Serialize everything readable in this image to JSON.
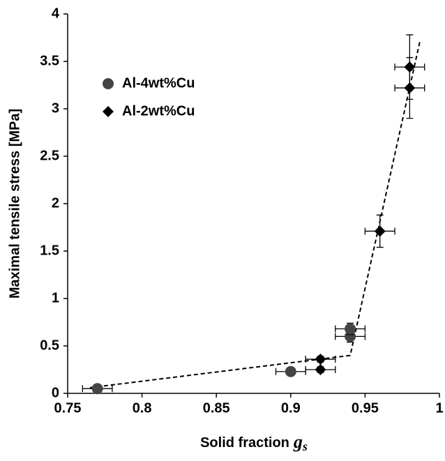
{
  "chart_data": {
    "type": "scatter",
    "x_label": "Solid fraction",
    "x_label_symbol": "g",
    "x_label_subscript": "s",
    "y_label": "Maximal tensile stress [MPa]",
    "xlim": [
      0.75,
      1
    ],
    "xticks": [
      0.75,
      0.8,
      0.85,
      0.9,
      0.95,
      1
    ],
    "ylim": [
      0,
      4
    ],
    "yticks": [
      0,
      0.5,
      1,
      1.5,
      2,
      2.5,
      3,
      3.5,
      4
    ],
    "grid": false,
    "legend": "upper left",
    "series": [
      {
        "name": "Al-4wt%Cu",
        "color": "#444444",
        "marker": "circle",
        "x": [
          0.77,
          0.9,
          0.94,
          0.94
        ],
        "values": [
          0.05,
          0.23,
          0.6,
          0.68
        ],
        "xerr": [
          0.01,
          0.01,
          0.01,
          0.01
        ],
        "yerr": [
          0.02,
          0.02,
          0.06,
          0.06
        ]
      },
      {
        "name": "Al-2wt%Cu",
        "color": "#000000",
        "marker": "diamond",
        "x": [
          0.92,
          0.92,
          0.96,
          0.98,
          0.98
        ],
        "values": [
          0.36,
          0.25,
          1.71,
          3.44,
          3.22
        ],
        "xerr": [
          0.01,
          0.01,
          0.01,
          0.01,
          0.01
        ],
        "yerr": [
          0.03,
          0.03,
          0.17,
          0.34,
          0.32
        ]
      }
    ],
    "trend_line": {
      "color": "#000000",
      "x": [
        0.765,
        0.94,
        0.987
      ],
      "values": [
        0.06,
        0.4,
        3.72
      ]
    }
  }
}
